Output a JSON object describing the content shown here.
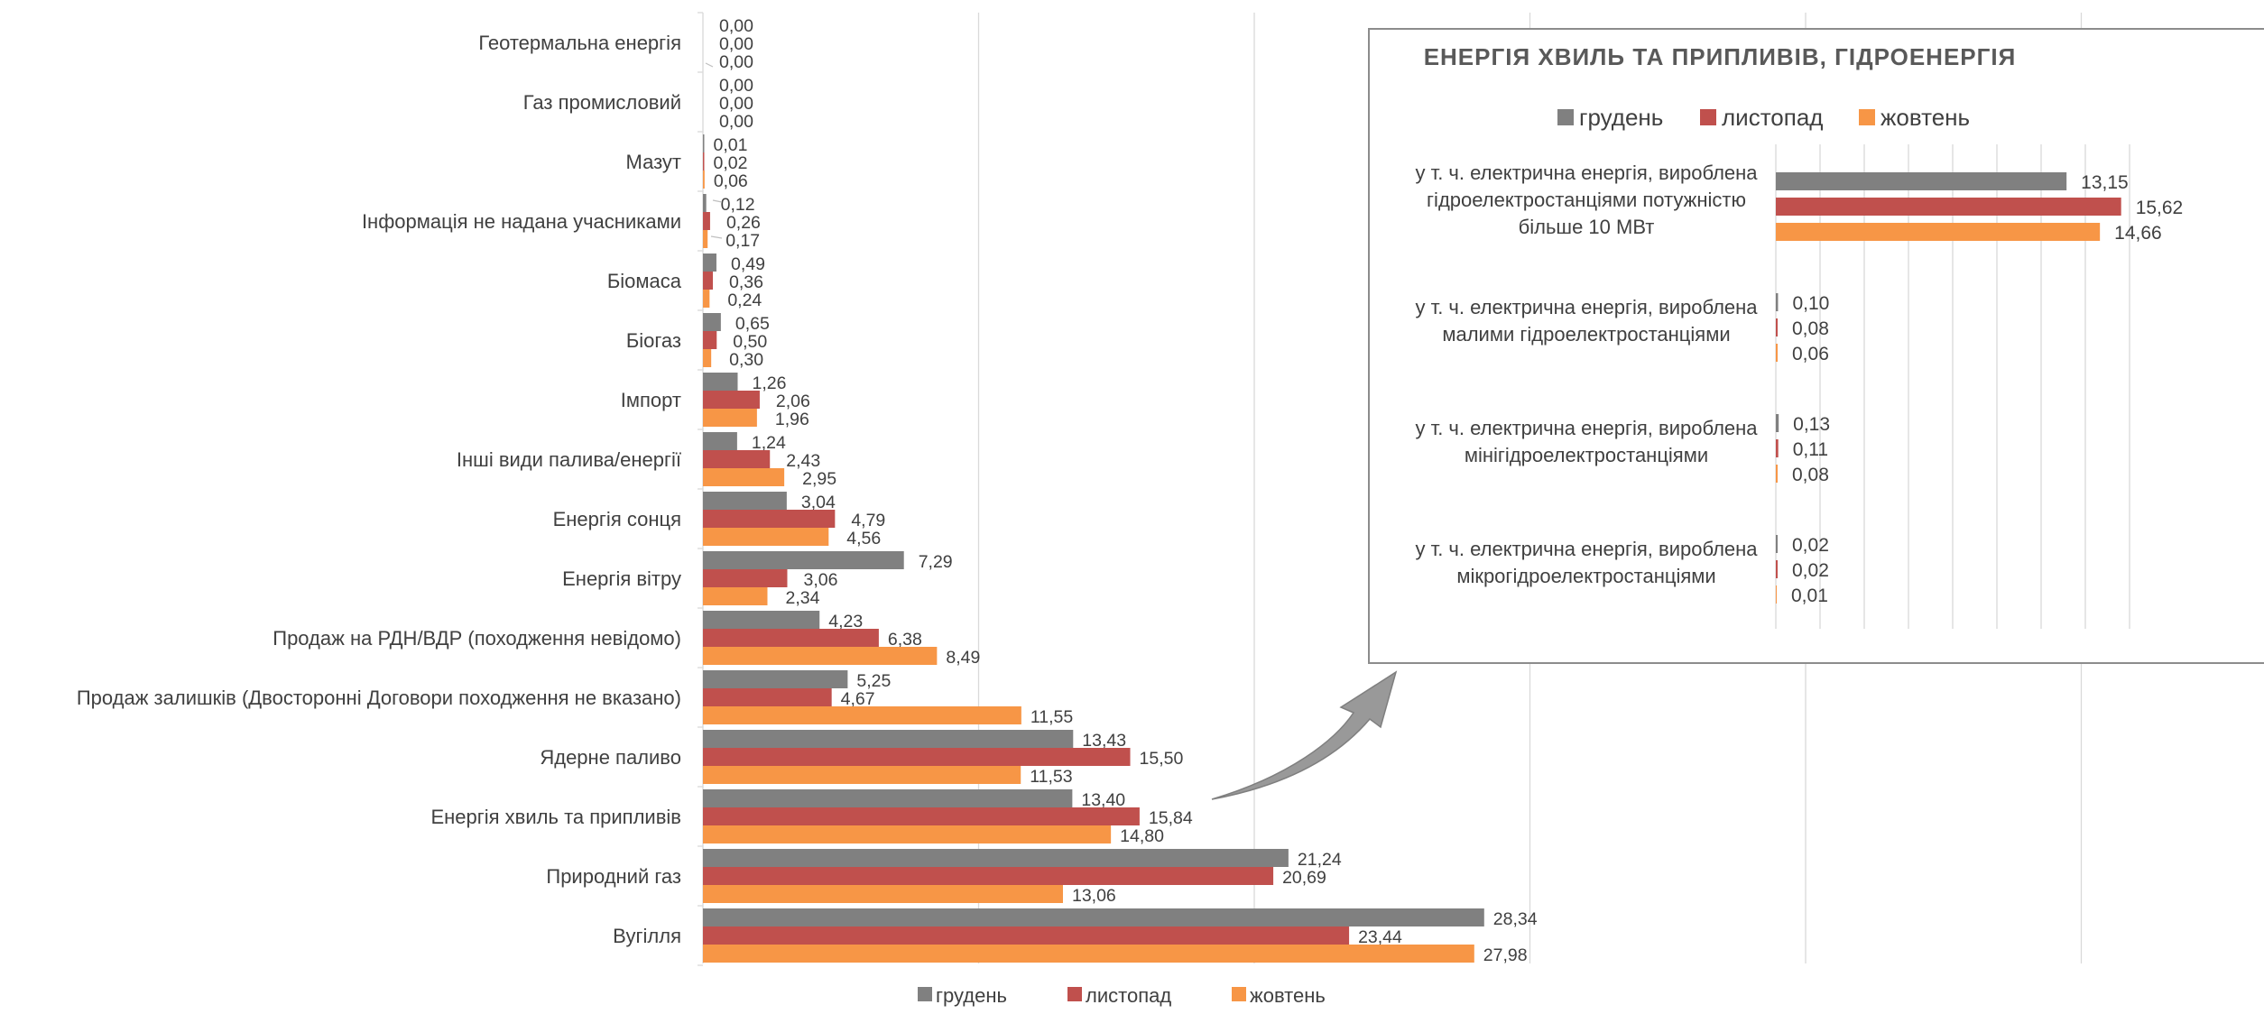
{
  "colors": {
    "series": [
      "#808080",
      "#c0504d",
      "#f79646"
    ],
    "grid": "#d9d9d9",
    "text": "#404040",
    "inset_border": "#8c8c8c",
    "arrow": "#999999"
  },
  "chart_data": [
    {
      "type": "bar",
      "orientation": "horizontal",
      "title": "",
      "categories": [
        "Геотермальна енергія",
        "Газ промисловий",
        "Мазут",
        "Інформація не надана учасниками",
        "Біомаса",
        "Біогаз",
        "Імпорт",
        "Інші види палива/енергії",
        "Енергія сонця",
        "Енергія вітру",
        "Продаж на РДН/ВДР (походження невідомо)",
        "Продаж залишків (Двосторонні Договори походження не вказано)",
        "Ядерне паливо",
        "Енергія хвиль та припливів",
        "Природний газ",
        "Вугілля"
      ],
      "series": [
        {
          "name": "грудень",
          "values": [
            0.0,
            0.0,
            0.01,
            0.12,
            0.49,
            0.65,
            1.26,
            1.24,
            3.04,
            7.29,
            4.23,
            5.25,
            13.43,
            13.4,
            21.24,
            28.34
          ]
        },
        {
          "name": "листопад",
          "values": [
            0.0,
            0.0,
            0.02,
            0.26,
            0.36,
            0.5,
            2.06,
            2.43,
            4.79,
            3.06,
            6.38,
            4.67,
            15.5,
            15.84,
            20.69,
            23.44
          ]
        },
        {
          "name": "жовтень",
          "values": [
            0.0,
            0.0,
            0.06,
            0.17,
            0.24,
            0.3,
            1.96,
            2.95,
            4.56,
            2.34,
            8.49,
            11.55,
            11.53,
            14.8,
            13.06,
            27.98
          ]
        }
      ],
      "labels": [
        [
          "0,00",
          "0,00",
          "0,01",
          "0,12",
          "0,49",
          "0,65",
          "1,26",
          "1,24",
          "3,04",
          "7,29",
          "4,23",
          "5,25",
          "13,43",
          "13,40",
          "21,24",
          "28,34"
        ],
        [
          "0,00",
          "0,00",
          "0,02",
          "0,26",
          "0,36",
          "0,50",
          "2,06",
          "2,43",
          "4,79",
          "3,06",
          "6,38",
          "4,67",
          "15,50",
          "15,84",
          "20,69",
          "23,44"
        ],
        [
          "0,00",
          "0,00",
          "0,06",
          "0,17",
          "0,24",
          "0,30",
          "1,96",
          "2,95",
          "4,56",
          "2,34",
          "8,49",
          "11,55",
          "11,53",
          "14,80",
          "13,06",
          "27,98"
        ]
      ],
      "xlim": [
        0,
        56
      ],
      "x_gridlines": [
        10,
        20,
        30,
        40,
        50
      ],
      "grid": true,
      "legend": "bottom"
    },
    {
      "type": "bar",
      "orientation": "horizontal",
      "title": "ЕНЕРГІЯ ХВИЛЬ ТА ПРИПЛИВІВ, ГІДРОЕНЕРГІЯ",
      "categories": [
        [
          "у т. ч. електрична енергія, вироблена",
          "гідроелектростанціями потужністю",
          "більше 10 МВт"
        ],
        [
          "у т. ч. електрична енергія, вироблена",
          "малими гідроелектростанціями"
        ],
        [
          "у т. ч. електрична енергія, вироблена",
          "мінігідроелектростанціями"
        ],
        [
          "у т. ч. електрична енергія, вироблена",
          "мікрогідроелектростанціями"
        ]
      ],
      "series": [
        {
          "name": "грудень",
          "values": [
            13.15,
            0.1,
            0.13,
            0.02
          ]
        },
        {
          "name": "листопад",
          "values": [
            15.62,
            0.08,
            0.11,
            0.02
          ]
        },
        {
          "name": "жовтень",
          "values": [
            14.66,
            0.06,
            0.08,
            0.01
          ]
        }
      ],
      "labels": [
        [
          "13,15",
          "0,10",
          "0,13",
          "0,02"
        ],
        [
          "15,62",
          "0,08",
          "0,11",
          "0,02"
        ],
        [
          "14,66",
          "0,06",
          "0,08",
          "0,01"
        ]
      ],
      "xlim": [
        0,
        18
      ],
      "x_gridlines": [
        2,
        4,
        6,
        8,
        10,
        12,
        14,
        16
      ],
      "grid": true,
      "legend": "top"
    }
  ]
}
